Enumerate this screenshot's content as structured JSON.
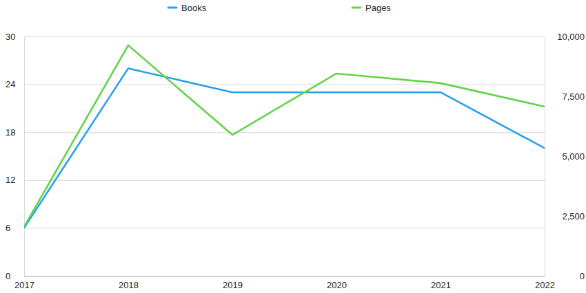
{
  "chart_data": {
    "type": "line",
    "x": [
      2017,
      2018,
      2019,
      2020,
      2021,
      2022
    ],
    "xlim": [
      2017,
      2022
    ],
    "xticks": [
      2017,
      2018,
      2019,
      2020,
      2021,
      2022
    ],
    "ylim": [
      0,
      30
    ],
    "yticks": [
      0,
      6,
      12,
      18,
      24,
      30
    ],
    "y2lim": [
      0,
      10000
    ],
    "y2ticks": [
      0,
      {
        "value": 2500,
        "label": "2,500"
      },
      {
        "value": 5000,
        "label": "5,000"
      },
      {
        "value": 7500,
        "label": "7,500"
      },
      {
        "value": 10000,
        "label": "10,000"
      }
    ],
    "grid": true,
    "legend": "top",
    "series": [
      {
        "name": "Books",
        "color": "#27a0f0",
        "values": [
          6,
          26,
          23,
          23,
          23,
          16
        ]
      },
      {
        "name": "Pages",
        "color": "#63d349",
        "axis": "y2",
        "values": [
          2050,
          9630,
          5890,
          8450,
          8050,
          7070
        ]
      }
    ]
  }
}
